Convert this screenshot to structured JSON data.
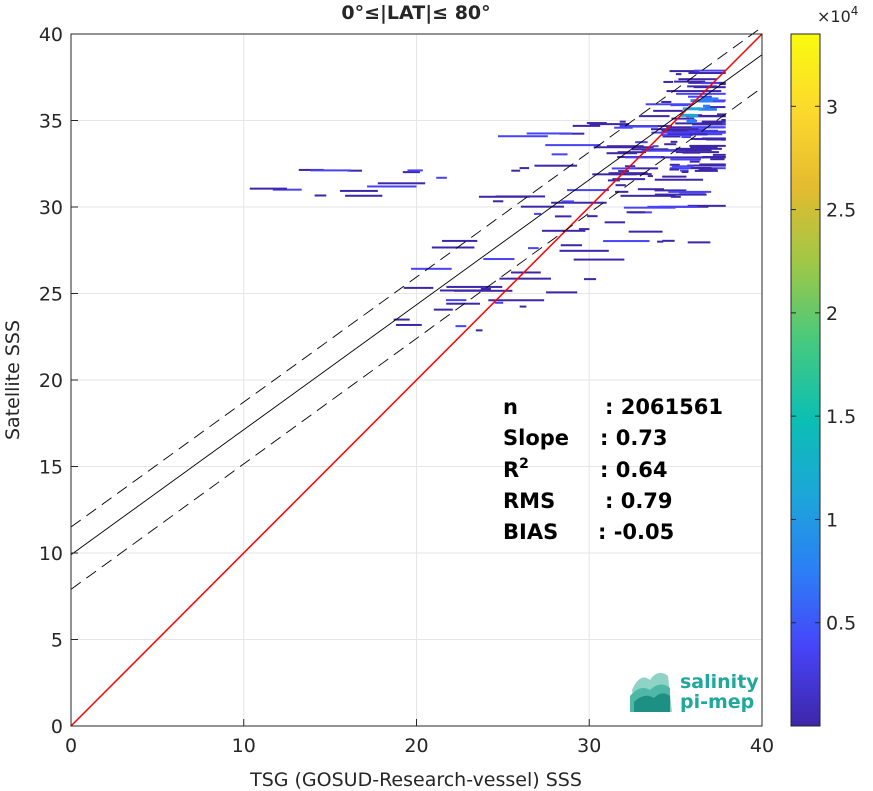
{
  "chart_data": {
    "type": "heatmap",
    "title": "0°≤|LAT|≤ 80°",
    "xlabel": "TSG (GOSUD-Research-vessel) SSS",
    "ylabel": "Satellite SSS",
    "xlim": [
      0,
      40
    ],
    "ylim": [
      0,
      40
    ],
    "xticks": [
      "0",
      "10",
      "20",
      "30",
      "40"
    ],
    "yticks": [
      "0",
      "5",
      "10",
      "15",
      "20",
      "25",
      "30",
      "35",
      "40"
    ],
    "grid": true,
    "colorbar": {
      "range": [
        0,
        33500
      ],
      "exponent_label": "×10",
      "exponent_power": "4",
      "ticks": [
        "0.5",
        "1",
        "1.5",
        "2",
        "2.5",
        "3"
      ],
      "tick_values": [
        5000,
        10000,
        15000,
        20000,
        25000,
        30000
      ],
      "colormap": [
        "#3e26a8",
        "#4743f8",
        "#2c7ef6",
        "#1ca6d9",
        "#0bbfb2",
        "#46c97e",
        "#9dc847",
        "#e3bb2f",
        "#fcd92d",
        "#f9fb0e"
      ]
    },
    "lines": [
      {
        "name": "one-to-one",
        "color": "#ff0000",
        "style": "solid",
        "x": [
          0,
          40
        ],
        "y": [
          0,
          40
        ]
      },
      {
        "name": "fit",
        "color": "#000000",
        "style": "solid",
        "x": [
          0,
          40
        ],
        "y": [
          9.9,
          38.8
        ]
      },
      {
        "name": "fit-upper",
        "color": "#000000",
        "style": "dashed",
        "x": [
          0,
          40
        ],
        "y": [
          11.5,
          40.4
        ]
      },
      {
        "name": "fit-lower",
        "color": "#000000",
        "style": "dashed",
        "x": [
          0,
          40
        ],
        "y": [
          7.9,
          36.9
        ]
      }
    ],
    "density_cloud": [
      {
        "x": [
          34.0,
          37.8
        ],
        "y": [
          32.0,
          38.0
        ],
        "count": 60
      },
      {
        "x": [
          31.0,
          37.0
        ],
        "y": [
          30.0,
          36.5
        ],
        "count": 45
      },
      {
        "x": [
          30.0,
          36.0
        ],
        "y": [
          28.0,
          35.0
        ],
        "count": 30
      },
      {
        "x": [
          24.0,
          30.0
        ],
        "y": [
          29.5,
          35.0
        ],
        "count": 18
      },
      {
        "x": [
          10.0,
          24.0
        ],
        "y": [
          30.5,
          32.3
        ],
        "count": 14
      },
      {
        "x": [
          18.0,
          30.0
        ],
        "y": [
          25.0,
          30.0
        ],
        "count": 16
      },
      {
        "x": [
          16.0,
          28.0
        ],
        "y": [
          22.5,
          25.5
        ],
        "count": 14
      },
      {
        "x": [
          35.0,
          36.8
        ],
        "y": [
          35.0,
          36.5
        ],
        "count": 10,
        "hot": true
      }
    ],
    "stats": [
      {
        "label": "n",
        "value": ": 2061561"
      },
      {
        "label": "Slope",
        "value": ": 0.73"
      },
      {
        "label": "R",
        "sup": "2",
        "value": ": 0.64"
      },
      {
        "label": "RMS",
        "value": ": 0.79"
      },
      {
        "label": "BIAS",
        "value": ": -0.05"
      }
    ]
  },
  "logo": {
    "line1": "salinity",
    "line2": "pi-mep",
    "color": "#1fa89b"
  }
}
